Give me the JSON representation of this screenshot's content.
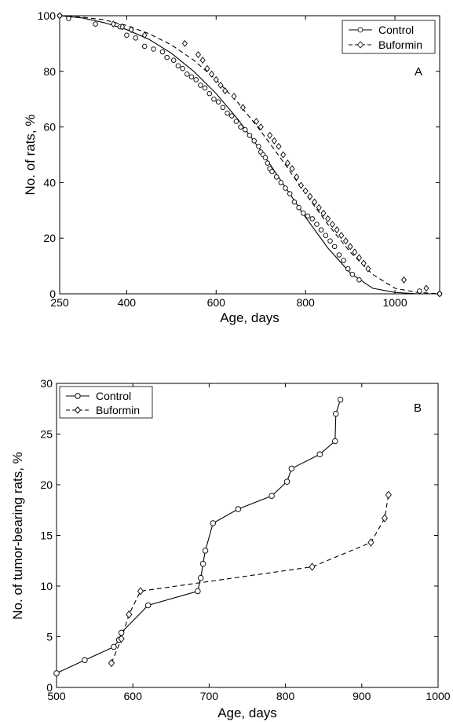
{
  "chart_data": [
    {
      "type": "scatter",
      "panel_label": "A",
      "xlabel": "Age, days",
      "ylabel": "No. of rats, %",
      "xlim": [
        250,
        1100
      ],
      "ylim": [
        0,
        100
      ],
      "xticks": [
        250,
        400,
        600,
        800,
        1000
      ],
      "yticks": [
        0,
        20,
        40,
        60,
        80,
        100
      ],
      "grid": false,
      "legend_position": "top-right",
      "series": [
        {
          "name": "Control",
          "marker": "circle",
          "line_style": "solid",
          "scatter_x": [
            250,
            270,
            330,
            385,
            400,
            420,
            440,
            460,
            480,
            490,
            505,
            515,
            525,
            535,
            545,
            555,
            565,
            575,
            585,
            595,
            605,
            615,
            625,
            635,
            645,
            655,
            665,
            675,
            685,
            695,
            700,
            705,
            710,
            715,
            720,
            725,
            735,
            745,
            755,
            765,
            775,
            785,
            795,
            805,
            815,
            825,
            835,
            845,
            855,
            865,
            875,
            885,
            895,
            905,
            920,
            1055,
            1100
          ],
          "scatter_y": [
            100,
            99,
            97,
            96,
            93,
            92,
            89,
            88,
            87,
            85,
            84,
            82,
            81,
            79,
            78,
            77,
            75,
            74,
            72,
            70,
            69,
            67,
            65,
            64,
            62,
            60,
            59,
            57,
            55,
            53,
            51,
            50,
            49,
            47,
            45,
            44,
            42,
            40,
            38,
            36,
            33,
            31,
            29,
            28,
            27,
            25,
            23,
            21,
            19,
            17,
            14,
            12,
            9,
            7,
            5,
            1,
            0
          ],
          "fit_x": [
            250,
            300,
            350,
            400,
            450,
            500,
            550,
            600,
            650,
            700,
            750,
            800,
            850,
            900,
            950,
            1000,
            1050,
            1100
          ],
          "fit_y": [
            100,
            99.2,
            97.5,
            95,
            91.5,
            86.5,
            80,
            72,
            62.5,
            51.5,
            39.5,
            27.5,
            16.5,
            7.5,
            2,
            0.5,
            0,
            0
          ]
        },
        {
          "name": "Buformin",
          "marker": "diamond",
          "line_style": "dashed",
          "scatter_x": [
            250,
            370,
            390,
            410,
            440,
            530,
            560,
            570,
            580,
            590,
            600,
            610,
            620,
            640,
            660,
            690,
            700,
            720,
            730,
            740,
            750,
            760,
            770,
            780,
            790,
            800,
            810,
            820,
            830,
            840,
            850,
            860,
            870,
            880,
            890,
            900,
            910,
            920,
            930,
            940,
            1020,
            1070,
            1100
          ],
          "scatter_y": [
            100,
            97,
            96,
            95,
            93,
            90,
            86,
            84,
            81,
            79,
            77,
            75,
            73,
            71,
            67,
            62,
            60,
            57,
            55,
            53,
            50,
            47,
            45,
            42,
            39,
            37,
            35,
            33,
            31,
            29,
            27,
            25,
            23,
            21,
            19,
            17,
            15,
            13,
            11,
            9,
            5,
            2,
            0
          ],
          "fit_x": [
            250,
            300,
            350,
            400,
            450,
            500,
            550,
            600,
            650,
            700,
            750,
            800,
            850,
            900,
            950,
            1000,
            1050,
            1100
          ],
          "fit_y": [
            100,
            99.5,
            98.5,
            96.5,
            93.5,
            89.5,
            84,
            77,
            68.5,
            58.5,
            47.5,
            36,
            25,
            15,
            7,
            2,
            0.5,
            0
          ]
        }
      ]
    },
    {
      "type": "line",
      "panel_label": "B",
      "xlabel": "Age, days",
      "ylabel": "No. of tumor-bearing rats, %",
      "xlim": [
        500,
        1000
      ],
      "ylim": [
        0,
        30
      ],
      "xticks": [
        500,
        600,
        700,
        800,
        900,
        1000
      ],
      "yticks": [
        0,
        5,
        10,
        15,
        20,
        25,
        30
      ],
      "grid": false,
      "legend_position": "top-left",
      "series": [
        {
          "name": "Control",
          "marker": "circle",
          "line_style": "solid",
          "x": [
            500,
            537,
            575,
            582,
            585,
            620,
            685,
            689,
            692,
            695,
            705,
            738,
            782,
            802,
            808,
            845,
            865,
            866,
            872
          ],
          "y": [
            1.4,
            2.7,
            4.0,
            4.7,
            5.4,
            8.1,
            9.5,
            10.8,
            12.2,
            13.5,
            16.2,
            17.6,
            18.9,
            20.3,
            21.6,
            23.0,
            24.3,
            27.0,
            28.4
          ]
        },
        {
          "name": "Buformin",
          "marker": "diamond",
          "line_style": "dashed",
          "x": [
            572,
            585,
            595,
            610,
            835,
            912,
            930,
            935
          ],
          "y": [
            2.4,
            4.8,
            7.2,
            9.5,
            11.9,
            14.3,
            16.7,
            19.0
          ]
        }
      ]
    }
  ]
}
